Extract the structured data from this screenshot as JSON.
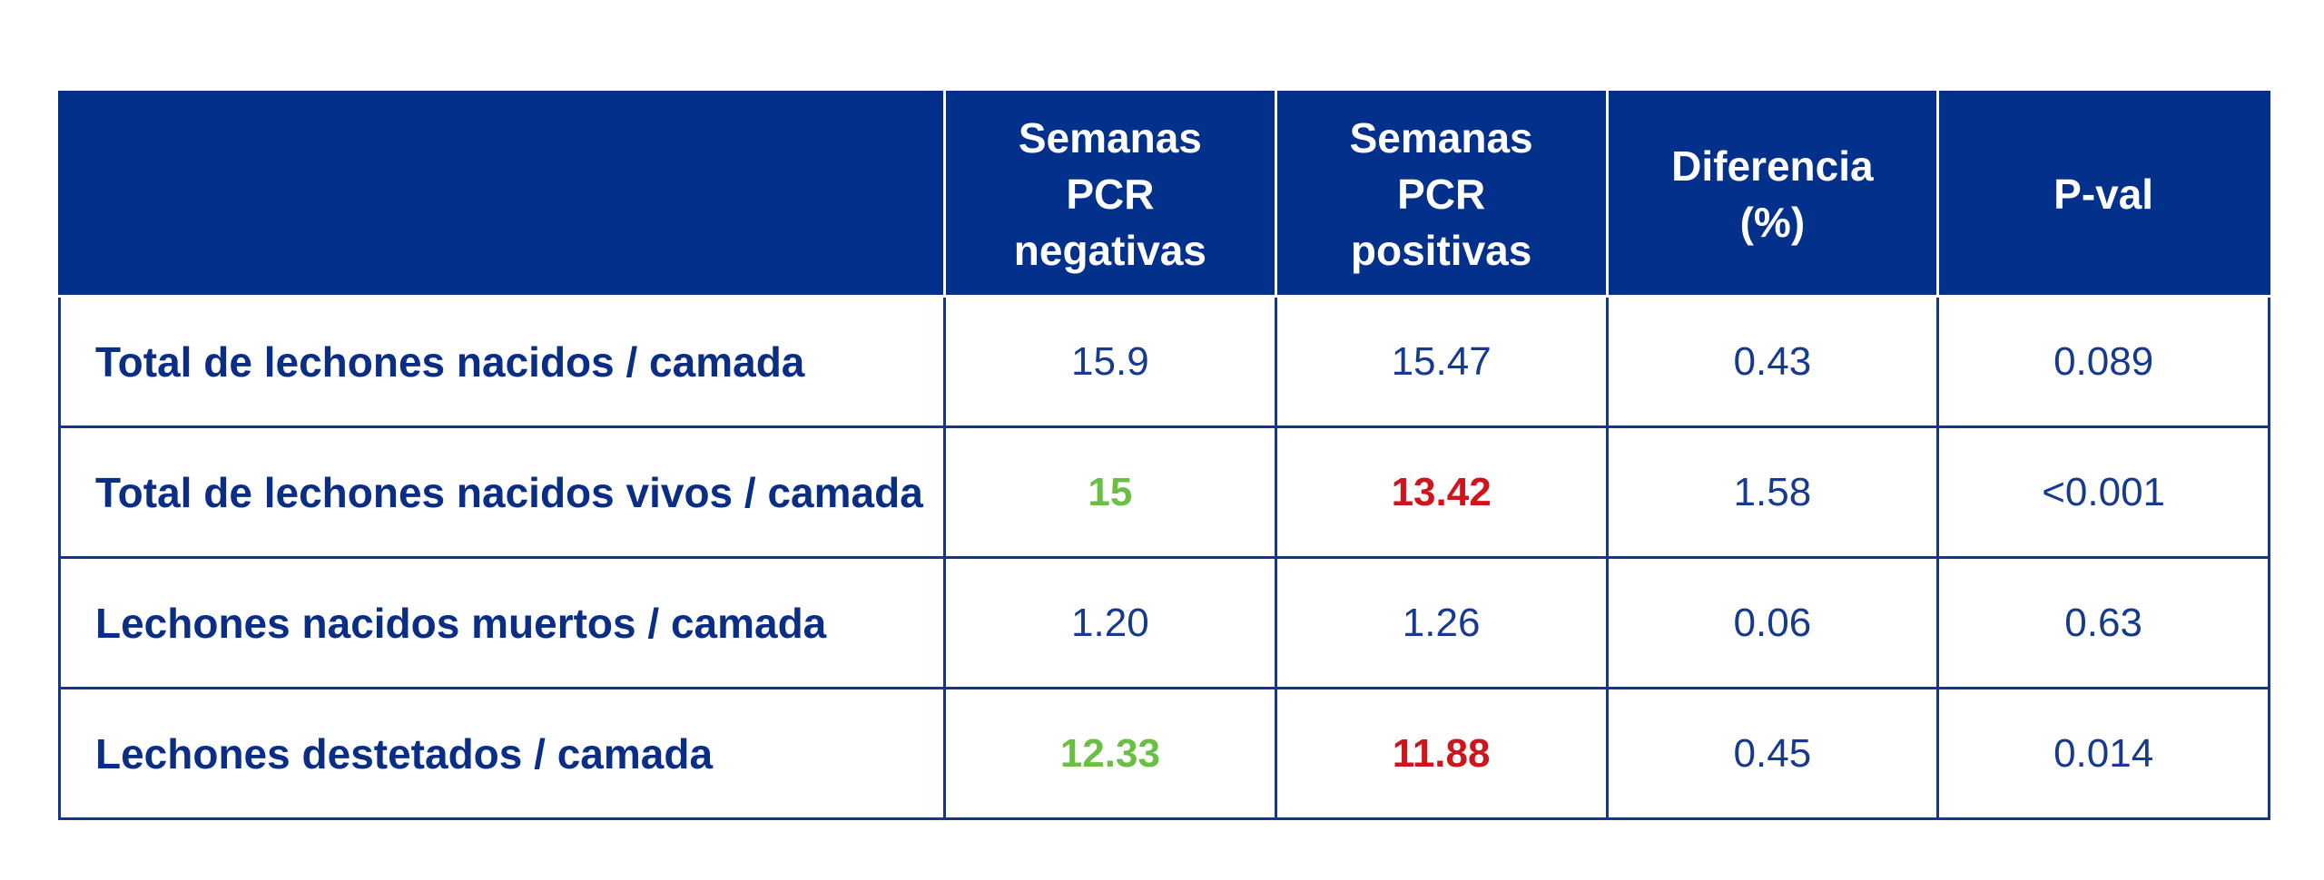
{
  "chart_data": {
    "type": "table",
    "columns": [
      "",
      "Semanas PCR negativas",
      "Semanas PCR positivas",
      "Diferencia (%)",
      "P-val"
    ],
    "header_lines": [
      [],
      [
        "Semanas",
        "PCR",
        "negativas"
      ],
      [
        "Semanas",
        "PCR",
        "positivas"
      ],
      [
        "Diferencia",
        "(%)"
      ],
      [
        "P-val"
      ]
    ],
    "rows": [
      {
        "label": "Total de lechones nacidos / camada",
        "values": [
          "15.9",
          "15.47",
          "0.43",
          "0.089"
        ],
        "highlight": [
          null,
          null,
          null,
          null
        ]
      },
      {
        "label": "Total de lechones nacidos vivos / camada",
        "values": [
          "15",
          "13.42",
          "1.58",
          "<0.001"
        ],
        "highlight": [
          "good",
          "bad",
          null,
          null
        ]
      },
      {
        "label": "Lechones nacidos muertos / camada",
        "values": [
          "1.20",
          "1.26",
          "0.06",
          "0.63"
        ],
        "highlight": [
          null,
          null,
          null,
          null
        ]
      },
      {
        "label": "Lechones destetados / camada",
        "values": [
          "12.33",
          "11.88",
          "0.45",
          "0.014"
        ],
        "highlight": [
          "good",
          "bad",
          null,
          null
        ]
      }
    ]
  },
  "colors": {
    "header_bg": "#02308a",
    "border": "#15358f",
    "text": "#153a8e",
    "good": "#6abf45",
    "bad": "#d0141b"
  }
}
